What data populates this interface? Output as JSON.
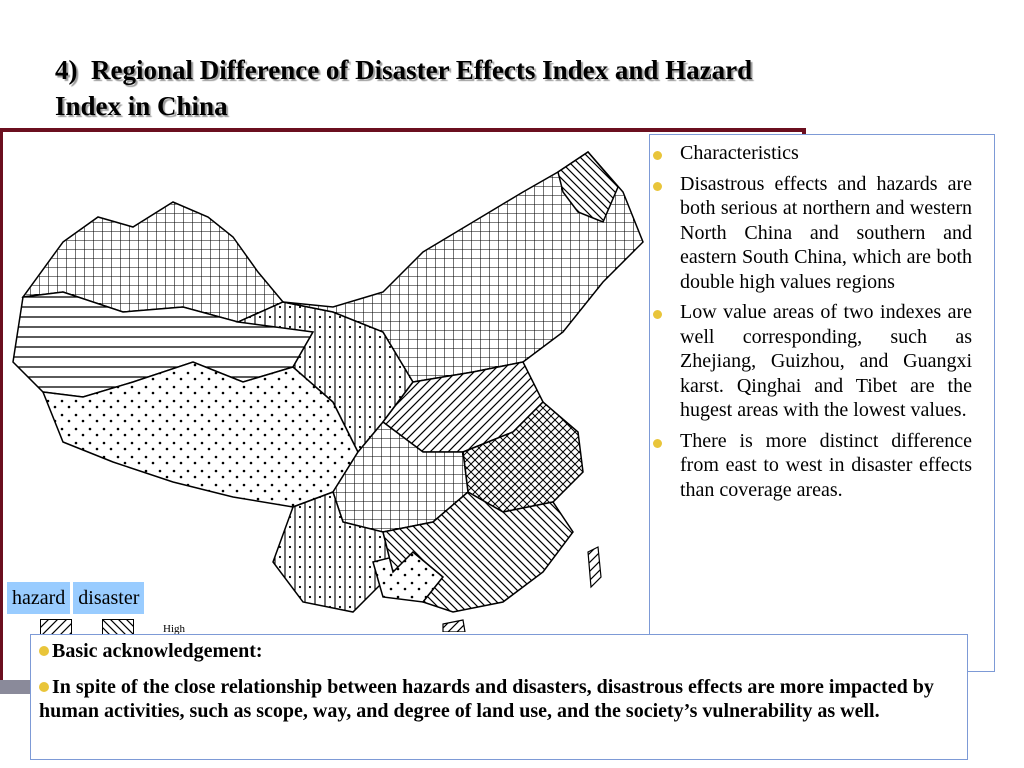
{
  "slide": {
    "title": "4)  Regional Difference of Disaster Effects Index and Hazard\nIndex in China"
  },
  "legend": {
    "hazard": "hazard",
    "disaster": "disaster",
    "high": "High"
  },
  "characteristics": {
    "items": [
      "Characteristics",
      "Disastrous effects and hazards are both serious at northern and western North China and southern and eastern South China, which are both double high values regions",
      "Low value areas of two indexes are well corresponding, such as Zhejiang, Guizhou, and Guangxi karst. Qinghai and Tibet are the hugest areas with the lowest values.",
      "There is more distinct difference from east to west in disaster effects than coverage areas."
    ]
  },
  "acknowledgement": {
    "heading": "Basic acknowledgement:",
    "body": "In spite of the close relationship between hazards and disasters, disastrous effects are more impacted by human activities, such as scope, way, and degree of land use, and the society’s vulnerability as well."
  },
  "colors": {
    "frame": "#6b0f1f",
    "bullet": "#e9c53a",
    "legend_bg": "#99ccff",
    "box_border": "#7d9ad6"
  }
}
